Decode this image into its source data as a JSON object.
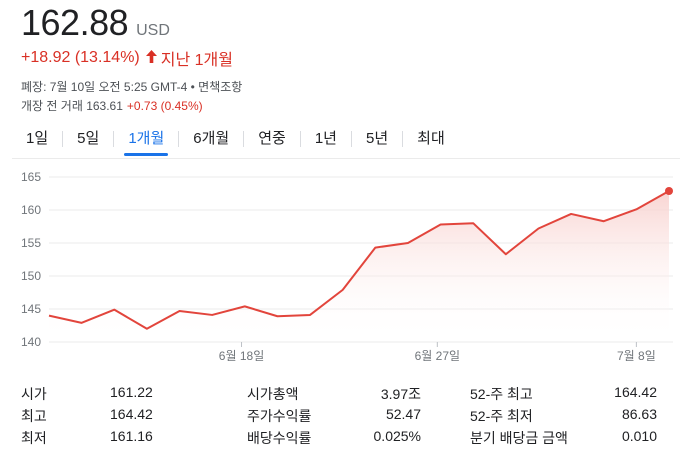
{
  "quote": {
    "price": "162.88",
    "currency": "USD",
    "change": "+18.92 (13.14%)",
    "change_direction_icon": "arrow-up-icon",
    "period_text": "지난 1개월",
    "close_info": "폐장: 7월 10일 오전 5:25 GMT-4 • 면책조항",
    "premarket_label": "개장 전 거래 163.61",
    "premarket_change": "+0.73 (0.45%)"
  },
  "tabs": [
    {
      "label": "1일",
      "active": false
    },
    {
      "label": "5일",
      "active": false
    },
    {
      "label": "1개월",
      "active": true
    },
    {
      "label": "6개월",
      "active": false
    },
    {
      "label": "연중",
      "active": false
    },
    {
      "label": "1년",
      "active": false
    },
    {
      "label": "5년",
      "active": false
    },
    {
      "label": "최대",
      "active": false
    }
  ],
  "chart_data": {
    "type": "area",
    "x": [
      "6월 9일",
      "6월 12일",
      "6월 13일",
      "6월 14일",
      "6월 15일",
      "6월 16일",
      "6월 20일",
      "6월 21일",
      "6월 22일",
      "6월 23일",
      "6월 26일",
      "6월 27일",
      "6월 28일",
      "6월 29일",
      "6월 30일",
      "7월 3일",
      "7월 5일",
      "7월 6일",
      "7월 7일",
      "7월 10일"
    ],
    "values": [
      144.0,
      142.9,
      144.9,
      142.0,
      144.7,
      144.1,
      145.4,
      143.9,
      144.1,
      147.9,
      154.3,
      155.0,
      157.8,
      158.0,
      153.3,
      157.2,
      159.4,
      158.3,
      160.1,
      162.88
    ],
    "x_tick_labels": [
      "6월 18일",
      "6월 27일",
      "7월 8일"
    ],
    "x_tick_positions": [
      5.9,
      11.9,
      18.0
    ],
    "y_ticks": [
      "140",
      "145",
      "150",
      "155",
      "160",
      "165"
    ],
    "ylim": [
      140,
      165
    ],
    "line_color": "#e2453c",
    "fill_color": "#f8d0cd",
    "grid": true
  },
  "stats": [
    {
      "label": "시가",
      "value": "161.22"
    },
    {
      "label": "최고",
      "value": "164.42"
    },
    {
      "label": "최저",
      "value": "161.16"
    },
    {
      "label": "시가총액",
      "value": "3.97조"
    },
    {
      "label": "주가수익률",
      "value": "52.47"
    },
    {
      "label": "배당수익률",
      "value": "0.025%"
    },
    {
      "label": "52-주 최고",
      "value": "164.42"
    },
    {
      "label": "52-주 최저",
      "value": "86.63"
    },
    {
      "label": "분기 배당금 금액",
      "value": "0.010"
    }
  ]
}
